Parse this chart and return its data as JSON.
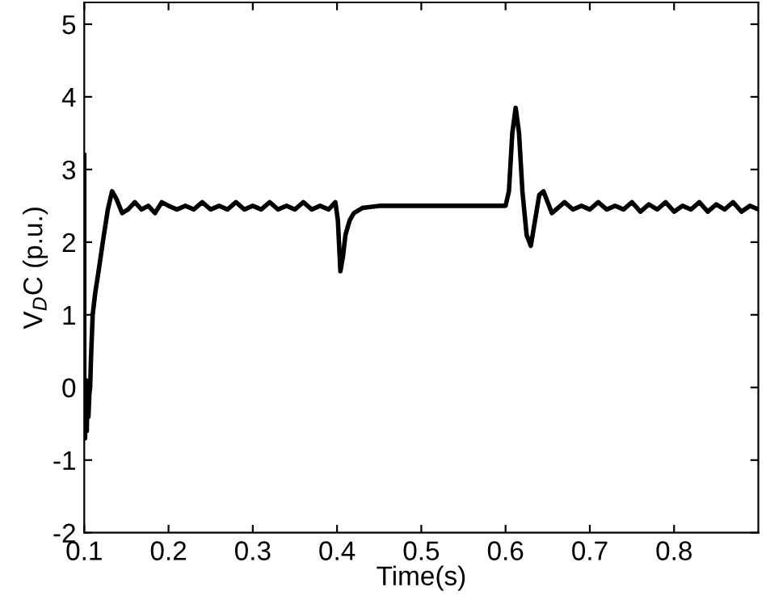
{
  "chart_data": {
    "type": "line",
    "xlabel": "Time(s)",
    "ylabel": "V$_{D}$C (p.u.)",
    "xlim": [
      0.1,
      0.9
    ],
    "xticks": [
      0.1,
      0.2,
      0.3,
      0.4,
      0.5,
      0.6,
      0.7,
      0.8
    ],
    "ylim": [
      -2,
      5.3
    ],
    "yticks": [
      -2,
      -1,
      0,
      1,
      2,
      3,
      4,
      5
    ],
    "grid": false,
    "legend": false,
    "marker": "none",
    "line_style": "solid",
    "series": [
      {
        "color": "#000000",
        "x": [
          0.1,
          0.1,
          0.101,
          0.102,
          0.103,
          0.104,
          0.105,
          0.106,
          0.107,
          0.108,
          0.11,
          0.113,
          0.117,
          0.122,
          0.128,
          0.133,
          0.138,
          0.145,
          0.152,
          0.16,
          0.168,
          0.176,
          0.184,
          0.192,
          0.2,
          0.21,
          0.22,
          0.23,
          0.24,
          0.25,
          0.26,
          0.27,
          0.28,
          0.29,
          0.3,
          0.31,
          0.32,
          0.33,
          0.34,
          0.35,
          0.36,
          0.37,
          0.38,
          0.39,
          0.398,
          0.401,
          0.404,
          0.407,
          0.41,
          0.415,
          0.42,
          0.43,
          0.45,
          0.5,
          0.55,
          0.6,
          0.604,
          0.608,
          0.612,
          0.616,
          0.62,
          0.625,
          0.63,
          0.635,
          0.64,
          0.645,
          0.65,
          0.655,
          0.66,
          0.67,
          0.68,
          0.69,
          0.7,
          0.71,
          0.72,
          0.73,
          0.74,
          0.75,
          0.76,
          0.77,
          0.78,
          0.79,
          0.8,
          0.81,
          0.82,
          0.83,
          0.84,
          0.85,
          0.86,
          0.87,
          0.88,
          0.89,
          0.9
        ],
        "values": [
          3.2,
          -0.4,
          -0.7,
          0.1,
          -0.6,
          0.0,
          -0.4,
          -0.1,
          0.0,
          0.4,
          1.0,
          1.3,
          1.6,
          2.0,
          2.45,
          2.7,
          2.6,
          2.4,
          2.45,
          2.55,
          2.45,
          2.5,
          2.4,
          2.55,
          2.5,
          2.45,
          2.5,
          2.45,
          2.55,
          2.45,
          2.5,
          2.45,
          2.55,
          2.45,
          2.5,
          2.45,
          2.55,
          2.45,
          2.5,
          2.45,
          2.55,
          2.45,
          2.5,
          2.45,
          2.55,
          2.3,
          1.6,
          1.8,
          2.1,
          2.3,
          2.4,
          2.47,
          2.5,
          2.5,
          2.5,
          2.5,
          2.7,
          3.5,
          3.85,
          3.5,
          2.7,
          2.1,
          1.95,
          2.3,
          2.65,
          2.7,
          2.55,
          2.4,
          2.45,
          2.55,
          2.45,
          2.5,
          2.45,
          2.55,
          2.45,
          2.5,
          2.45,
          2.55,
          2.42,
          2.52,
          2.45,
          2.55,
          2.42,
          2.5,
          2.45,
          2.55,
          2.42,
          2.52,
          2.45,
          2.55,
          2.42,
          2.5,
          2.45
        ]
      }
    ]
  }
}
